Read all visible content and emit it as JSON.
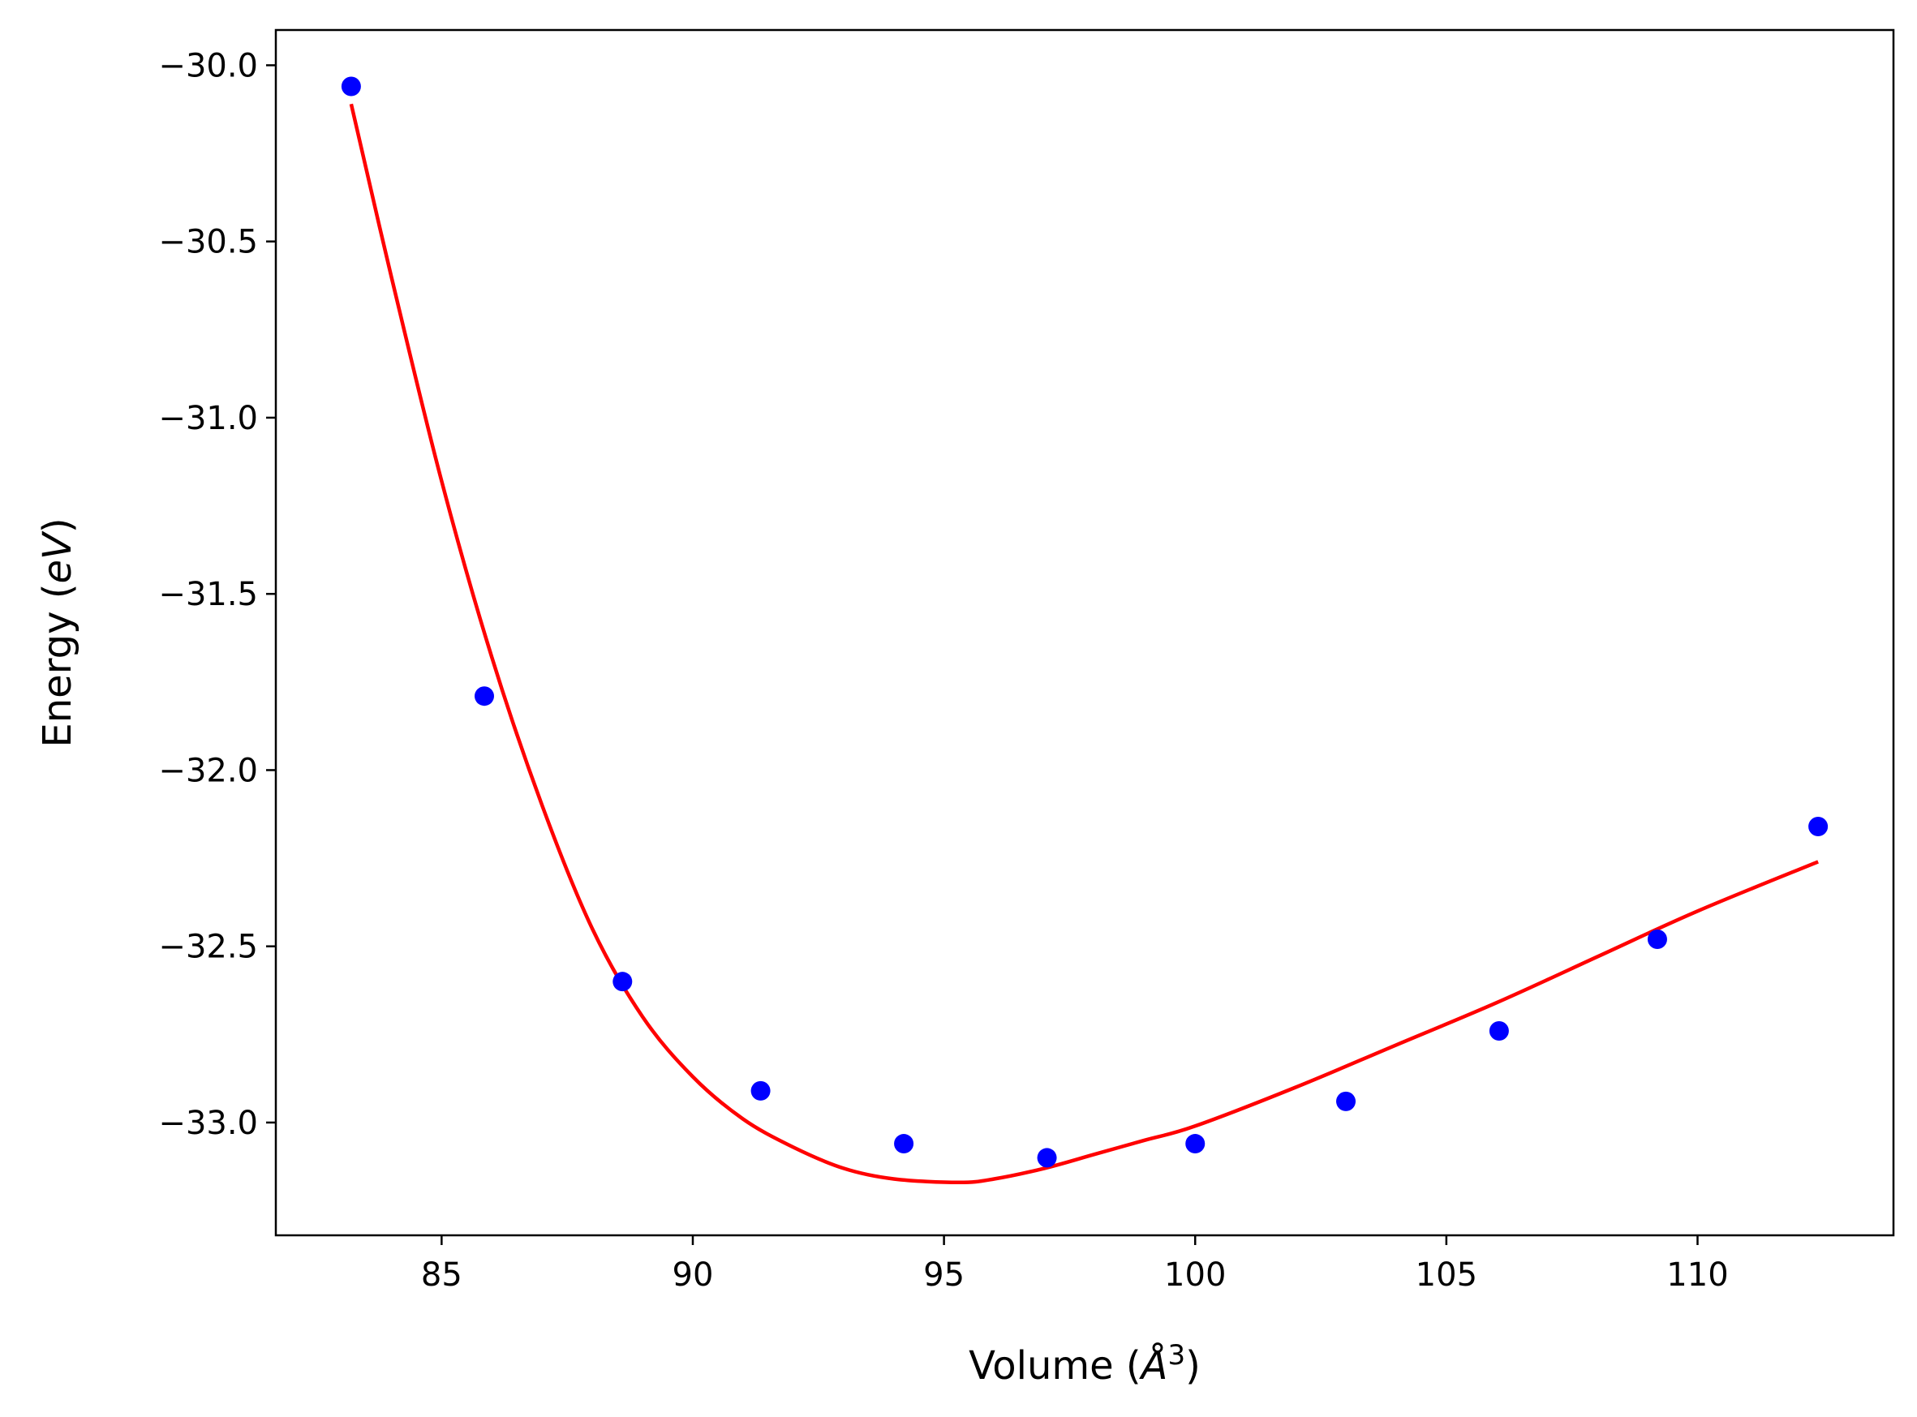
{
  "chart_data": {
    "type": "scatter",
    "xlabel_main": "Volume (",
    "xlabel_unit": "Å",
    "xlabel_exp": "3",
    "xlabel_close": ")",
    "ylabel_main": "Energy (",
    "ylabel_unit": "eV",
    "ylabel_close": ")",
    "xlim": [
      81.7,
      113.9
    ],
    "ylim": [
      -33.32,
      -29.9
    ],
    "xticks": [
      85,
      90,
      95,
      100,
      105,
      110
    ],
    "xtick_labels": [
      "85",
      "90",
      "95",
      "100",
      "105",
      "110"
    ],
    "yticks": [
      -30.0,
      -30.5,
      -31.0,
      -31.5,
      -32.0,
      -32.5,
      -33.0
    ],
    "ytick_labels": [
      "−30.0",
      "−30.5",
      "−31.0",
      "−31.5",
      "−32.0",
      "−32.5",
      "−33.0"
    ],
    "grid": false,
    "series": [
      {
        "kind": "points",
        "color": "#0000ff",
        "x": [
          83.2,
          85.85,
          88.6,
          91.35,
          94.2,
          97.05,
          100.0,
          103.0,
          106.05,
          109.2,
          112.4
        ],
        "y": [
          -30.06,
          -31.79,
          -32.6,
          -32.91,
          -33.06,
          -33.1,
          -33.06,
          -32.94,
          -32.74,
          -32.48,
          -32.16
        ]
      },
      {
        "kind": "fit-line",
        "color": "#ff0000",
        "x": [
          83.2,
          84.0,
          85.0,
          86.0,
          87.0,
          88.0,
          89.0,
          90.0,
          91.0,
          92.0,
          93.0,
          94.0,
          95.3,
          96.0,
          97.0,
          98.0,
          99.0,
          100.0,
          102.0,
          104.0,
          106.0,
          108.0,
          110.0,
          112.4
        ],
        "y": [
          -30.11,
          -30.6,
          -31.18,
          -31.68,
          -32.1,
          -32.45,
          -32.7,
          -32.87,
          -32.99,
          -33.07,
          -33.13,
          -33.16,
          -33.17,
          -33.16,
          -33.13,
          -33.09,
          -33.05,
          -33.01,
          -32.9,
          -32.78,
          -32.66,
          -32.53,
          -32.4,
          -32.26
        ]
      }
    ]
  }
}
